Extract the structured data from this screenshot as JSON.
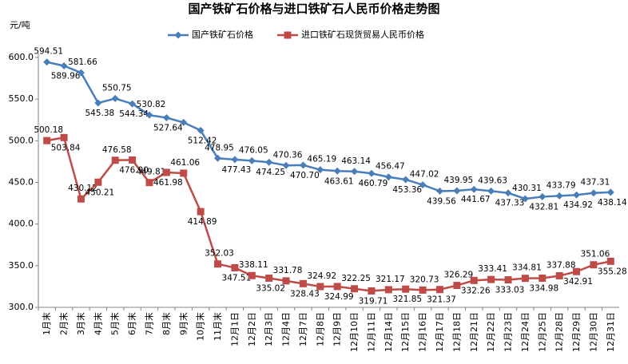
{
  "chart_data": {
    "type": "line",
    "title": "国产铁矿石价格与进口铁矿石人民币价格走势图",
    "y_axis_label": "元/吨",
    "categories": [
      "1月末",
      "2月末",
      "3月末",
      "4月末",
      "5月末",
      "6月末",
      "7月末",
      "8月末",
      "9月末",
      "10月末",
      "11月末",
      "12月1日",
      "12月2日",
      "12月3日",
      "12月4日",
      "12月7日",
      "12月8日",
      "12月9日",
      "12月10日",
      "12月11日",
      "12月14日",
      "12月15日",
      "12月16日",
      "12月17日",
      "12月18日",
      "12月21日",
      "12月22日",
      "12月23日",
      "12月24日",
      "12月25日",
      "12月28日",
      "12月29日",
      "12月30日",
      "12月31日"
    ],
    "series": [
      {
        "name": "国产铁矿石价格",
        "color": "#4a7ebb",
        "marker": "diamond",
        "values": [
          594.51,
          589.96,
          581.66,
          545.38,
          550.75,
          544.34,
          530.82,
          527.64,
          522,
          512.42,
          478.95,
          477.43,
          476.05,
          474.25,
          470.36,
          470.7,
          465.19,
          463.61,
          463.14,
          460.79,
          456.47,
          453.36,
          447.02,
          439.56,
          439.95,
          441.67,
          439.63,
          437.33,
          430.31,
          432.81,
          433.79,
          434.92,
          437.31,
          438.14
        ],
        "value_labels": [
          "594.51",
          "589.96",
          "581.66",
          "545.38",
          "550.75",
          "544.34",
          "530.82",
          "527.64",
          null,
          "512.42",
          "478.95",
          "477.43",
          "476.05",
          "474.25",
          "470.36",
          "470.70",
          "465.19",
          "463.61",
          "463.14",
          "460.79",
          "456.47",
          "453.36",
          "447.02",
          "439.56",
          "439.95",
          "441.67",
          "439.63",
          "437.33",
          "430.31",
          "432.81",
          "433.79",
          "434.92",
          "437.31",
          "438.14"
        ]
      },
      {
        "name": "进口铁矿石现货贸易人民币价格",
        "color": "#be4b48",
        "marker": "square",
        "values": [
          500.18,
          503.84,
          430.12,
          450.21,
          476.58,
          476.9,
          449.81,
          461.98,
          461.06,
          414.89,
          352.03,
          347.51,
          338.11,
          335.02,
          331.78,
          328.43,
          324.92,
          324.99,
          322.25,
          319.71,
          321.17,
          321.85,
          320.73,
          321.37,
          326.29,
          332.26,
          333.41,
          333.03,
          334.81,
          334.98,
          337.88,
          342.91,
          351.06,
          355.28
        ],
        "value_labels": [
          "500.18",
          "503.84",
          "430.12",
          "450.21",
          "476.58",
          "476.90",
          "449.81",
          "461.98",
          "461.06",
          "414.89",
          "352.03",
          "347.51",
          "338.11",
          "335.02",
          "331.78",
          "328.43",
          "324.92",
          "324.99",
          "322.25",
          "319.71",
          "321.17",
          "321.85",
          "320.73",
          "321.37",
          "326.29",
          "332.26",
          "333.41",
          "333.03",
          "334.81",
          "334.98",
          "337.88",
          "342.91",
          "351.06",
          "355.28"
        ]
      }
    ],
    "ylim": [
      300,
      600
    ],
    "yticks": [
      {
        "value": 300,
        "label": "300.0"
      },
      {
        "value": 350,
        "label": "350.0"
      },
      {
        "value": 400,
        "label": "400.0"
      },
      {
        "value": 450,
        "label": "450.0"
      },
      {
        "value": 500,
        "label": "500.0"
      },
      {
        "value": 550,
        "label": "550.0"
      },
      {
        "value": 600,
        "label": "600.0"
      }
    ],
    "legend": "top"
  }
}
